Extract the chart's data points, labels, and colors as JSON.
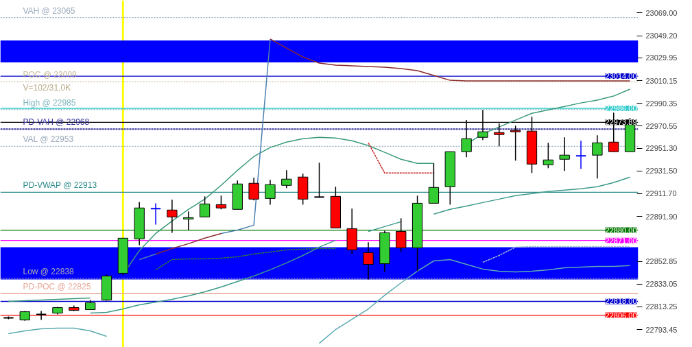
{
  "chart_data": {
    "type": "candlestick",
    "categories": [
      null,
      null,
      null,
      null,
      null,
      null,
      null,
      null,
      null,
      null,
      null,
      null,
      null,
      null,
      null,
      null,
      null,
      null,
      null,
      null,
      null,
      null,
      null,
      null,
      null,
      null,
      null,
      null,
      null,
      null,
      null,
      null,
      null,
      null,
      null,
      null,
      null,
      null,
      null
    ],
    "ohlc": [
      [
        22803.6,
        22804.8,
        22802.4,
        22803.6
      ],
      [
        22801.8,
        22809.6,
        22801.2,
        22809.0
      ],
      [
        22806.6,
        22809.6,
        22801.8,
        22806.6
      ],
      [
        22807.8,
        22813.2,
        22806.6,
        22812.6
      ],
      [
        22812.6,
        22814.4,
        22809.6,
        22810.2
      ],
      [
        22810.8,
        22819.2,
        22810.8,
        22816.8
      ],
      [
        22819.2,
        22841.3,
        22818.6,
        22840.1
      ],
      [
        22842.5,
        22873.0,
        22840.7,
        22873.0
      ],
      [
        22872.4,
        22904.6,
        22867.0,
        22899.3
      ],
      [
        22898.7,
        22903.4,
        22884.9,
        22898.7
      ],
      [
        22897.5,
        22906.4,
        22877.7,
        22891.5
      ],
      [
        22889.7,
        22896.3,
        22880.1,
        22890.9
      ],
      [
        22891.5,
        22909.4,
        22891.5,
        22902.8
      ],
      [
        22902.2,
        22910.0,
        22898.1,
        22899.3
      ],
      [
        22898.1,
        22923.2,
        22898.1,
        22920.2
      ],
      [
        22920.8,
        22925.6,
        22905.8,
        22907.0
      ],
      [
        22907.6,
        22923.8,
        22902.2,
        22919.6
      ],
      [
        22919.0,
        22932.1,
        22916.6,
        22924.4
      ],
      [
        22926.2,
        22929.1,
        22902.2,
        22907.0
      ],
      [
        22908.8,
        22938.7,
        22908.2,
        22908.8
      ],
      [
        22909.4,
        22917.8,
        22881.9,
        22881.9
      ],
      [
        22881.3,
        22898.7,
        22859.2,
        22862.8
      ],
      [
        22860.4,
        22869.4,
        22837.1,
        22850.2
      ],
      [
        22850.8,
        22879.5,
        22843.7,
        22877.7
      ],
      [
        22878.9,
        22890.3,
        22861.0,
        22864.6
      ],
      [
        22864.6,
        22910.0,
        22844.3,
        22903.4
      ],
      [
        22903.4,
        22938.1,
        22903.4,
        22917.2
      ],
      [
        22917.8,
        22948.3,
        22902.2,
        22948.3
      ],
      [
        22948.3,
        22975.8,
        22943.5,
        22959.6
      ],
      [
        22960.8,
        22984.7,
        22958.4,
        22965.6
      ],
      [
        22965.0,
        22972.8,
        22953.0,
        22963.2
      ],
      [
        22966.8,
        22971.0,
        22940.5,
        22965.6
      ],
      [
        22966.2,
        22978.7,
        22929.7,
        22937.5
      ],
      [
        22936.9,
        22956.0,
        22933.9,
        22941.1
      ],
      [
        22941.7,
        22960.8,
        22931.5,
        22945.3
      ],
      [
        22944.7,
        22957.8,
        22933.3,
        22944.7
      ],
      [
        22945.3,
        22962.6,
        22925.0,
        22956.0
      ],
      [
        22956.6,
        22982.3,
        22948.3,
        22948.3
      ],
      [
        22948.3,
        22977.6,
        22948.3,
        22973.4
      ]
    ],
    "colors": [
      "#000000",
      "#33cc33",
      "#000000",
      "#33cc33",
      "#ff0000",
      "#33cc33",
      "#33cc33",
      "#33cc33",
      "#33cc33",
      "#0000ff",
      "#ff0000",
      "#33cc33",
      "#33cc33",
      "#ff0000",
      "#33cc33",
      "#ff0000",
      "#33cc33",
      "#33cc33",
      "#ff0000",
      "#000000",
      "#ff0000",
      "#ff0000",
      "#ff0000",
      "#33cc33",
      "#ff0000",
      "#33cc33",
      "#33cc33",
      "#33cc33",
      "#33cc33",
      "#33cc33",
      "#ff0000",
      "#ff0000",
      "#ff0000",
      "#33cc33",
      "#33cc33",
      "#0000ff",
      "#33cc33",
      "#ff0000",
      "#33cc33"
    ],
    "series": [
      {
        "type": "line",
        "color": "#3a9a7a",
        "line_style": "solid",
        "values": [
          22818.0,
          22818.6,
          22819.2,
          22819.8,
          22820.4,
          22821.0,
          null,
          22841.3,
          22862.2,
          22877.1,
          22887.9,
          22898.1,
          22907.0,
          22919.0,
          22932.1,
          22944.1,
          22951.9,
          22956.6,
          22959.6,
          22960.8,
          22960.2,
          22957.8,
          22953.6,
          22947.7,
          22941.7,
          22938.1,
          22938.1,
          null,
          22954.8,
          22963.8,
          22969.8,
          22975.8,
          22981.7,
          22984.7,
          22987.7,
          22990.7,
          22993.1,
          22996.7,
          23002.7
        ]
      },
      {
        "type": "line",
        "color": "#3a9a8a",
        "line_style": "solid",
        "values": [
          null,
          null,
          null,
          null,
          null,
          22807.8,
          22808.4,
          22811.4,
          22815.0,
          22817.4,
          22819.8,
          22822.8,
          22826.3,
          22830.5,
          22835.3,
          22840.1,
          22845.5,
          22851.5,
          22858.0,
          22865.2,
          22871.2,
          null,
          22878.9,
          22883.1,
          22887.3,
          null,
          22893.9,
          22898.1,
          22901.0,
          22904.0,
          22907.0,
          22910.0,
          22911.8,
          22913.6,
          22914.8,
          22916.0,
          22917.8,
          22921.4,
          22926.2
        ]
      },
      {
        "type": "line",
        "color": "#5aaab0",
        "line_style": "solid",
        "values": [
          22789.9,
          22792.3,
          22794.1,
          22794.7,
          22794.7,
          22792.3,
          22787.5,
          null,
          null,
          null,
          null,
          null,
          null,
          null,
          null,
          null,
          null,
          null,
          null,
          22781.5,
          22793.5,
          22802.4,
          22811.4,
          22823.3,
          22834.1,
          22844.3,
          22853.2,
          22854.4,
          22850.2,
          22846.1,
          22844.3,
          22843.7,
          22844.3,
          22845.5,
          22847.3,
          22847.9,
          22848.5,
          22848.5,
          22849.1
        ]
      },
      {
        "type": "line",
        "color": "#4a7fb0",
        "line_style": "solid",
        "values": [
          null,
          null,
          null,
          null,
          null,
          null,
          null,
          null,
          22854.4,
          22859.2,
          null,
          null,
          null,
          22877.1,
          22880.1,
          22884.3,
          23046.3,
          null,
          null,
          null,
          null,
          null,
          null,
          null,
          null,
          null,
          null,
          null,
          null,
          null,
          null,
          null,
          null,
          null,
          null,
          null,
          null,
          null,
          null
        ]
      },
      {
        "type": "line",
        "color": "#8b2a2a",
        "line_style": "solid",
        "values": [
          null,
          null,
          null,
          null,
          null,
          null,
          null,
          null,
          null,
          22859.2,
          22864.0,
          22868.2,
          22873.0,
          22877.1,
          null,
          null,
          23046.3,
          23038.5,
          23030.7,
          23025.4,
          23023.6,
          23023.0,
          23022.4,
          23021.8,
          23020.6,
          23018.8,
          23014.6,
          23010.4,
          23009.8,
          23009.8,
          23009.8,
          23009.8,
          23009.8,
          23009.8,
          23009.8,
          23009.8,
          23009.8,
          23009.8,
          23009.8
        ]
      },
      {
        "type": "line",
        "color": "#2e7d32",
        "line_style": "dashed",
        "values": [
          null,
          null,
          null,
          null,
          null,
          null,
          null,
          null,
          null,
          22845.5,
          22854.4,
          22855.0,
          22855.0,
          22855.6,
          22856.8,
          22859.2,
          22861.0,
          22862.8,
          22863.4,
          22864.0,
          22864.0,
          null,
          null,
          null,
          null,
          null,
          null,
          null,
          null,
          null,
          null,
          null,
          null,
          null,
          null,
          null,
          null,
          null,
          null
        ]
      },
      {
        "type": "line",
        "color": "#cc2222",
        "line_style": "dashed",
        "values": [
          null,
          null,
          null,
          null,
          null,
          null,
          null,
          null,
          null,
          null,
          null,
          null,
          null,
          null,
          null,
          null,
          null,
          null,
          null,
          null,
          null,
          null,
          22956.0,
          22929.7,
          22929.7,
          22929.7,
          22929.7,
          null,
          null,
          null,
          null,
          null,
          null,
          null,
          null,
          null,
          null,
          null,
          null
        ]
      },
      {
        "type": "line",
        "color": "#aabbcc",
        "line_style": "dashed",
        "values": [
          null,
          null,
          null,
          null,
          null,
          null,
          null,
          null,
          null,
          null,
          null,
          null,
          null,
          null,
          null,
          null,
          null,
          null,
          null,
          null,
          null,
          null,
          null,
          null,
          null,
          null,
          null,
          null,
          null,
          22852.0,
          22858.0,
          22865.2,
          22865.8,
          22865.8,
          22865.8,
          22865.8,
          22865.8,
          22865.8,
          22865.8
        ]
      }
    ],
    "ylim": [
      22778,
      23080
    ],
    "yticks": [
      {
        "value": 23069.0,
        "label": "23069.00"
      },
      {
        "value": 23049.2,
        "label": "23049.20"
      },
      {
        "value": 23029.95,
        "label": "23029.95"
      },
      {
        "value": 23010.15,
        "label": "23010.15"
      },
      {
        "value": 22990.35,
        "label": "22990.35"
      },
      {
        "value": 22970.55,
        "label": "22970.55"
      },
      {
        "value": 22951.3,
        "label": "22951.30"
      },
      {
        "value": 22931.5,
        "label": "22931.50"
      },
      {
        "value": 22911.7,
        "label": "22911.70"
      },
      {
        "value": 22891.9,
        "label": "22891.90"
      },
      {
        "value": 22852.85,
        "label": "22852.85"
      },
      {
        "value": 22833.05,
        "label": "22833.05"
      },
      {
        "value": 22813.25,
        "label": "22813.25"
      },
      {
        "value": 22793.45,
        "label": "22793.45"
      }
    ],
    "tick_labels": "y",
    "bands": [
      {
        "axis": "y",
        "from": 23026.0,
        "to": 23045.1,
        "color": "#0000ff"
      },
      {
        "axis": "y",
        "from": 22837.1,
        "to": 22865.2,
        "color": "#0000ff"
      }
    ],
    "ref_lines": [
      {
        "axis": "y",
        "value": 23065,
        "label": "VAH @ 23065",
        "color": "#9aaabb",
        "line_style": "dotted"
      },
      {
        "axis": "y",
        "value": 23009,
        "label": "POC @ 23009",
        "color": "#c8b896",
        "line_style": "dotted"
      },
      {
        "axis": "y",
        "value": 22985,
        "label": "High @ 22985",
        "color": "#7fb8c0",
        "line_style": "dotted"
      },
      {
        "axis": "y",
        "value": 22968,
        "label": "PD-VAH @ 22968",
        "color": "#333399",
        "line_style": "dashed"
      },
      {
        "axis": "y",
        "value": 22953,
        "label": "VAL @ 22953",
        "color": "#9aaabb",
        "line_style": "dotted"
      },
      {
        "axis": "y",
        "value": 22913,
        "label": "PD-VWAP @ 22913",
        "color": "#2a8a8a",
        "line_style": "solid"
      },
      {
        "axis": "y",
        "value": 22838,
        "label": "Low @ 22838",
        "color": "#aaaaaa",
        "line_style": "dotted"
      },
      {
        "axis": "y",
        "value": 22825,
        "label": "PD-POC @ 22825",
        "color": "#e8a898",
        "line_style": "solid"
      },
      {
        "axis": "y",
        "value": 23014.0,
        "label": "23014.00",
        "color": "#0000cc",
        "line_style": "solid"
      },
      {
        "axis": "y",
        "value": 22986.0,
        "label": "22986.00",
        "color": "#33cccc",
        "line_style": "solid"
      },
      {
        "axis": "y",
        "value": 22973.89,
        "label": "22973.89",
        "color": "#000000",
        "line_style": "solid"
      },
      {
        "axis": "y",
        "value": 22880.0,
        "label": "22880.00",
        "color": "#007700",
        "line_style": "solid"
      },
      {
        "axis": "y",
        "value": 22871.0,
        "label": "22871.00",
        "color": "#ff00ff",
        "line_style": "solid"
      },
      {
        "axis": "y",
        "value": 22818.0,
        "label": "22818.00",
        "color": "#0000cc",
        "line_style": "solid"
      },
      {
        "axis": "y",
        "value": 22806.0,
        "label": "22806.00",
        "color": "#ff0000",
        "line_style": "solid"
      }
    ],
    "annotations": [
      "V=102/31.0K"
    ],
    "grid": false
  }
}
